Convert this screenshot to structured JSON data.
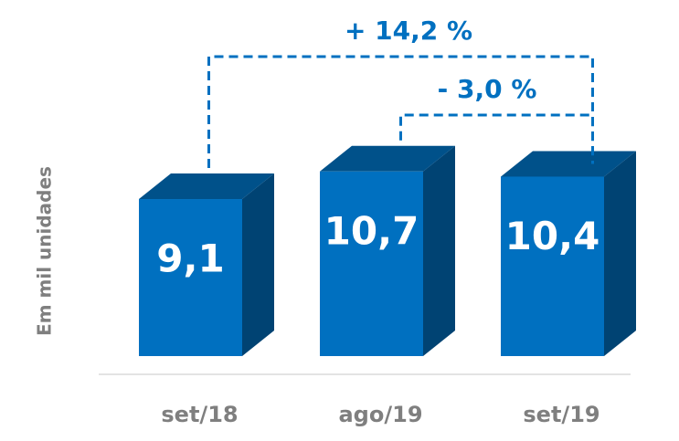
{
  "chart_data": {
    "type": "bar",
    "y_label": "Em mil unidades",
    "categories": [
      "set/18",
      "ago/19",
      "set/19"
    ],
    "values": [
      9.1,
      10.7,
      10.4
    ],
    "value_labels": [
      "9,1",
      "10,7",
      "10,4"
    ],
    "color": "#0070c0",
    "ylim": [
      0,
      20
    ],
    "annotations": [
      "+ 14,2 %",
      "- 3,0 %"
    ]
  }
}
